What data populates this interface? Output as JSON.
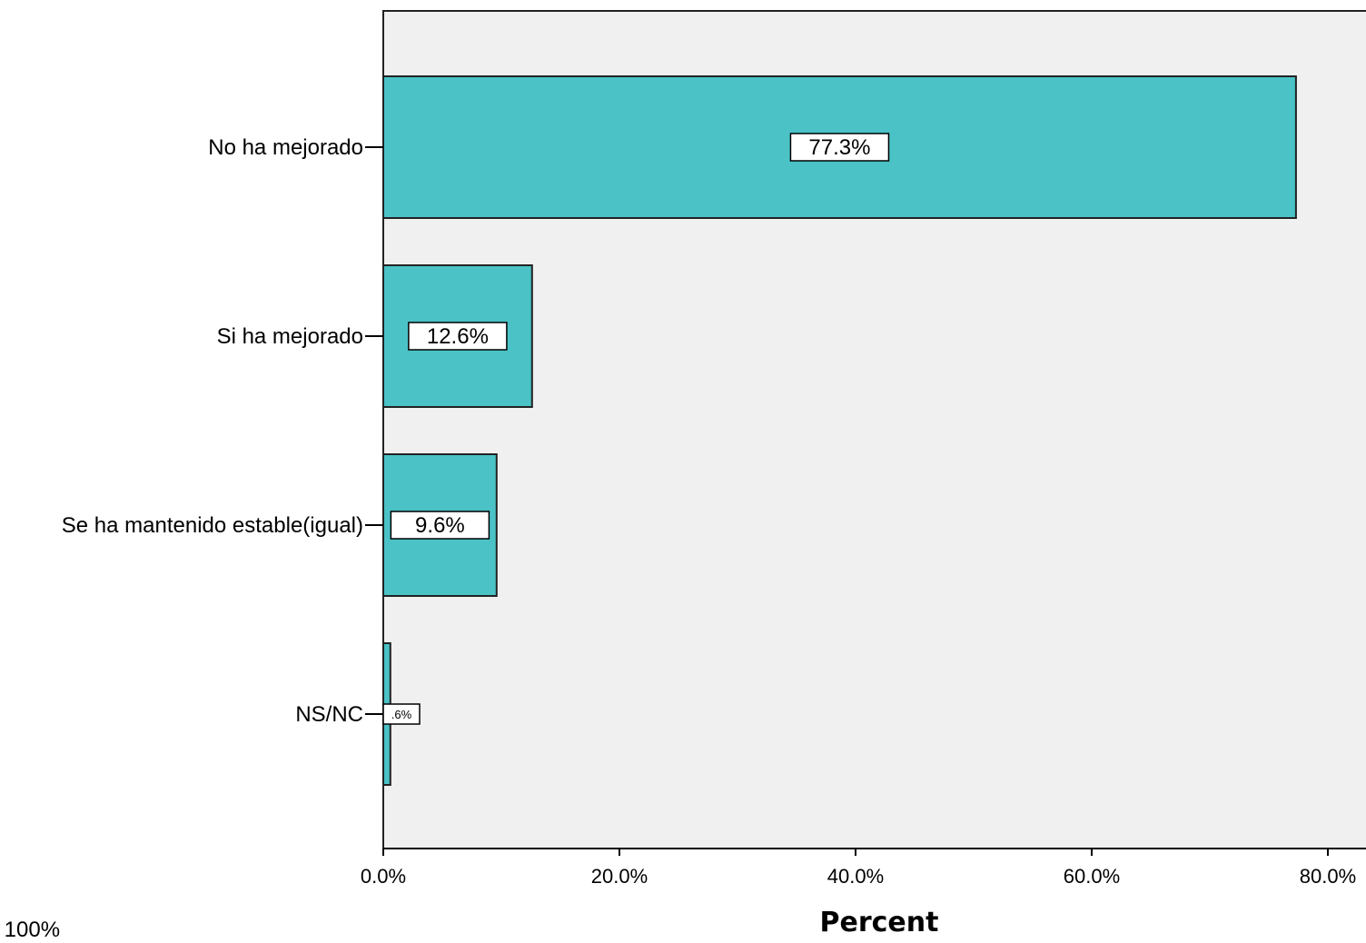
{
  "chart_data": {
    "type": "bar",
    "orientation": "horizontal",
    "categories": [
      "No ha mejorado",
      "Si ha mejorado",
      "Se ha mantenido estable(igual)",
      "NS/NC"
    ],
    "values": [
      77.3,
      12.6,
      9.6,
      0.6
    ],
    "data_labels": [
      "77.3%",
      "12.6%",
      "9.6%",
      ".6%"
    ],
    "xlabel": "Percent",
    "ylabel": "",
    "xlim": [
      0,
      80
    ],
    "x_ticks": [
      0,
      20,
      40,
      60,
      80
    ],
    "x_tick_labels": [
      "0.0%",
      "20.0%",
      "40.0%",
      "60.0%",
      "80.0%"
    ],
    "grid": false,
    "colors": {
      "bar": "#4ac2c6",
      "plot_background": "#f0f0f0",
      "outline": "#222222"
    }
  },
  "footnote": "a: 100%"
}
